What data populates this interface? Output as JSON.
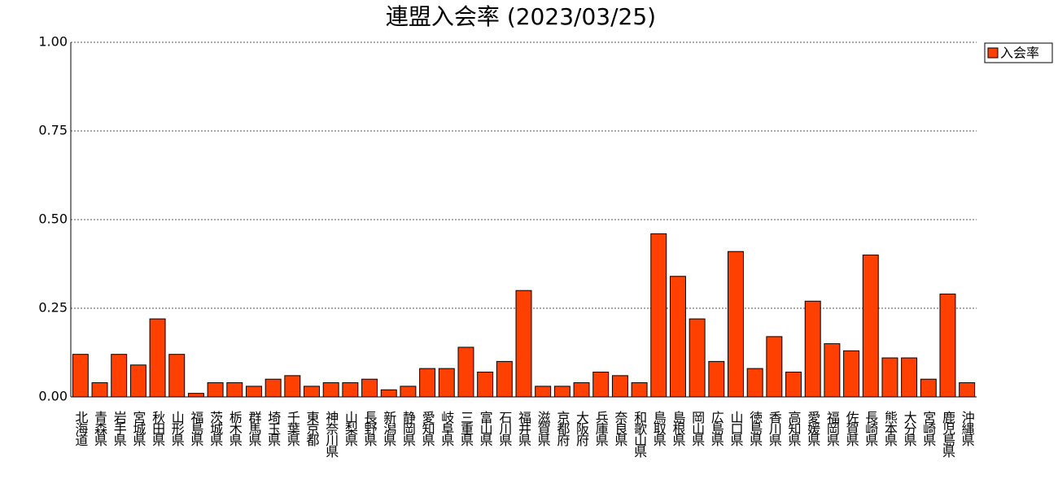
{
  "chart_data": {
    "type": "bar",
    "title": "連盟入会率 (2023/03/25)",
    "categories": [
      "北海道",
      "青森県",
      "岩手県",
      "宮城県",
      "秋田県",
      "山形県",
      "福島県",
      "茨城県",
      "栃木県",
      "群馬県",
      "埼玉県",
      "千葉県",
      "東京都",
      "神奈川県",
      "山梨県",
      "長野県",
      "新潟県",
      "静岡県",
      "愛知県",
      "岐阜県",
      "三重県",
      "富山県",
      "石川県",
      "福井県",
      "滋賀県",
      "京都府",
      "大阪府",
      "兵庫県",
      "奈良県",
      "和歌山県",
      "鳥取県",
      "島根県",
      "岡山県",
      "広島県",
      "山口県",
      "徳島県",
      "香川県",
      "高知県",
      "愛媛県",
      "福岡県",
      "佐賀県",
      "長崎県",
      "熊本県",
      "大分県",
      "宮崎県",
      "鹿児島県",
      "沖縄県"
    ],
    "series": [
      {
        "name": "入会率",
        "color": "#ff4000",
        "values": [
          0.12,
          0.04,
          0.12,
          0.09,
          0.22,
          0.12,
          0.01,
          0.04,
          0.04,
          0.03,
          0.05,
          0.06,
          0.03,
          0.04,
          0.04,
          0.05,
          0.02,
          0.03,
          0.08,
          0.08,
          0.14,
          0.07,
          0.1,
          0.3,
          0.03,
          0.03,
          0.04,
          0.07,
          0.06,
          0.04,
          0.46,
          0.34,
          0.22,
          0.1,
          0.41,
          0.08,
          0.17,
          0.07,
          0.27,
          0.15,
          0.13,
          0.4,
          0.11,
          0.11,
          0.05,
          0.29,
          0.04
        ]
      }
    ],
    "ylim": [
      0,
      1
    ],
    "yticks": [
      {
        "value": 0,
        "label": "0.00"
      },
      {
        "value": 0.25,
        "label": "0.25"
      },
      {
        "value": 0.5,
        "label": "0.50"
      },
      {
        "value": 0.75,
        "label": "0.75"
      },
      {
        "value": 1,
        "label": "1.00"
      }
    ],
    "grid": true,
    "legend": "upper-right"
  }
}
